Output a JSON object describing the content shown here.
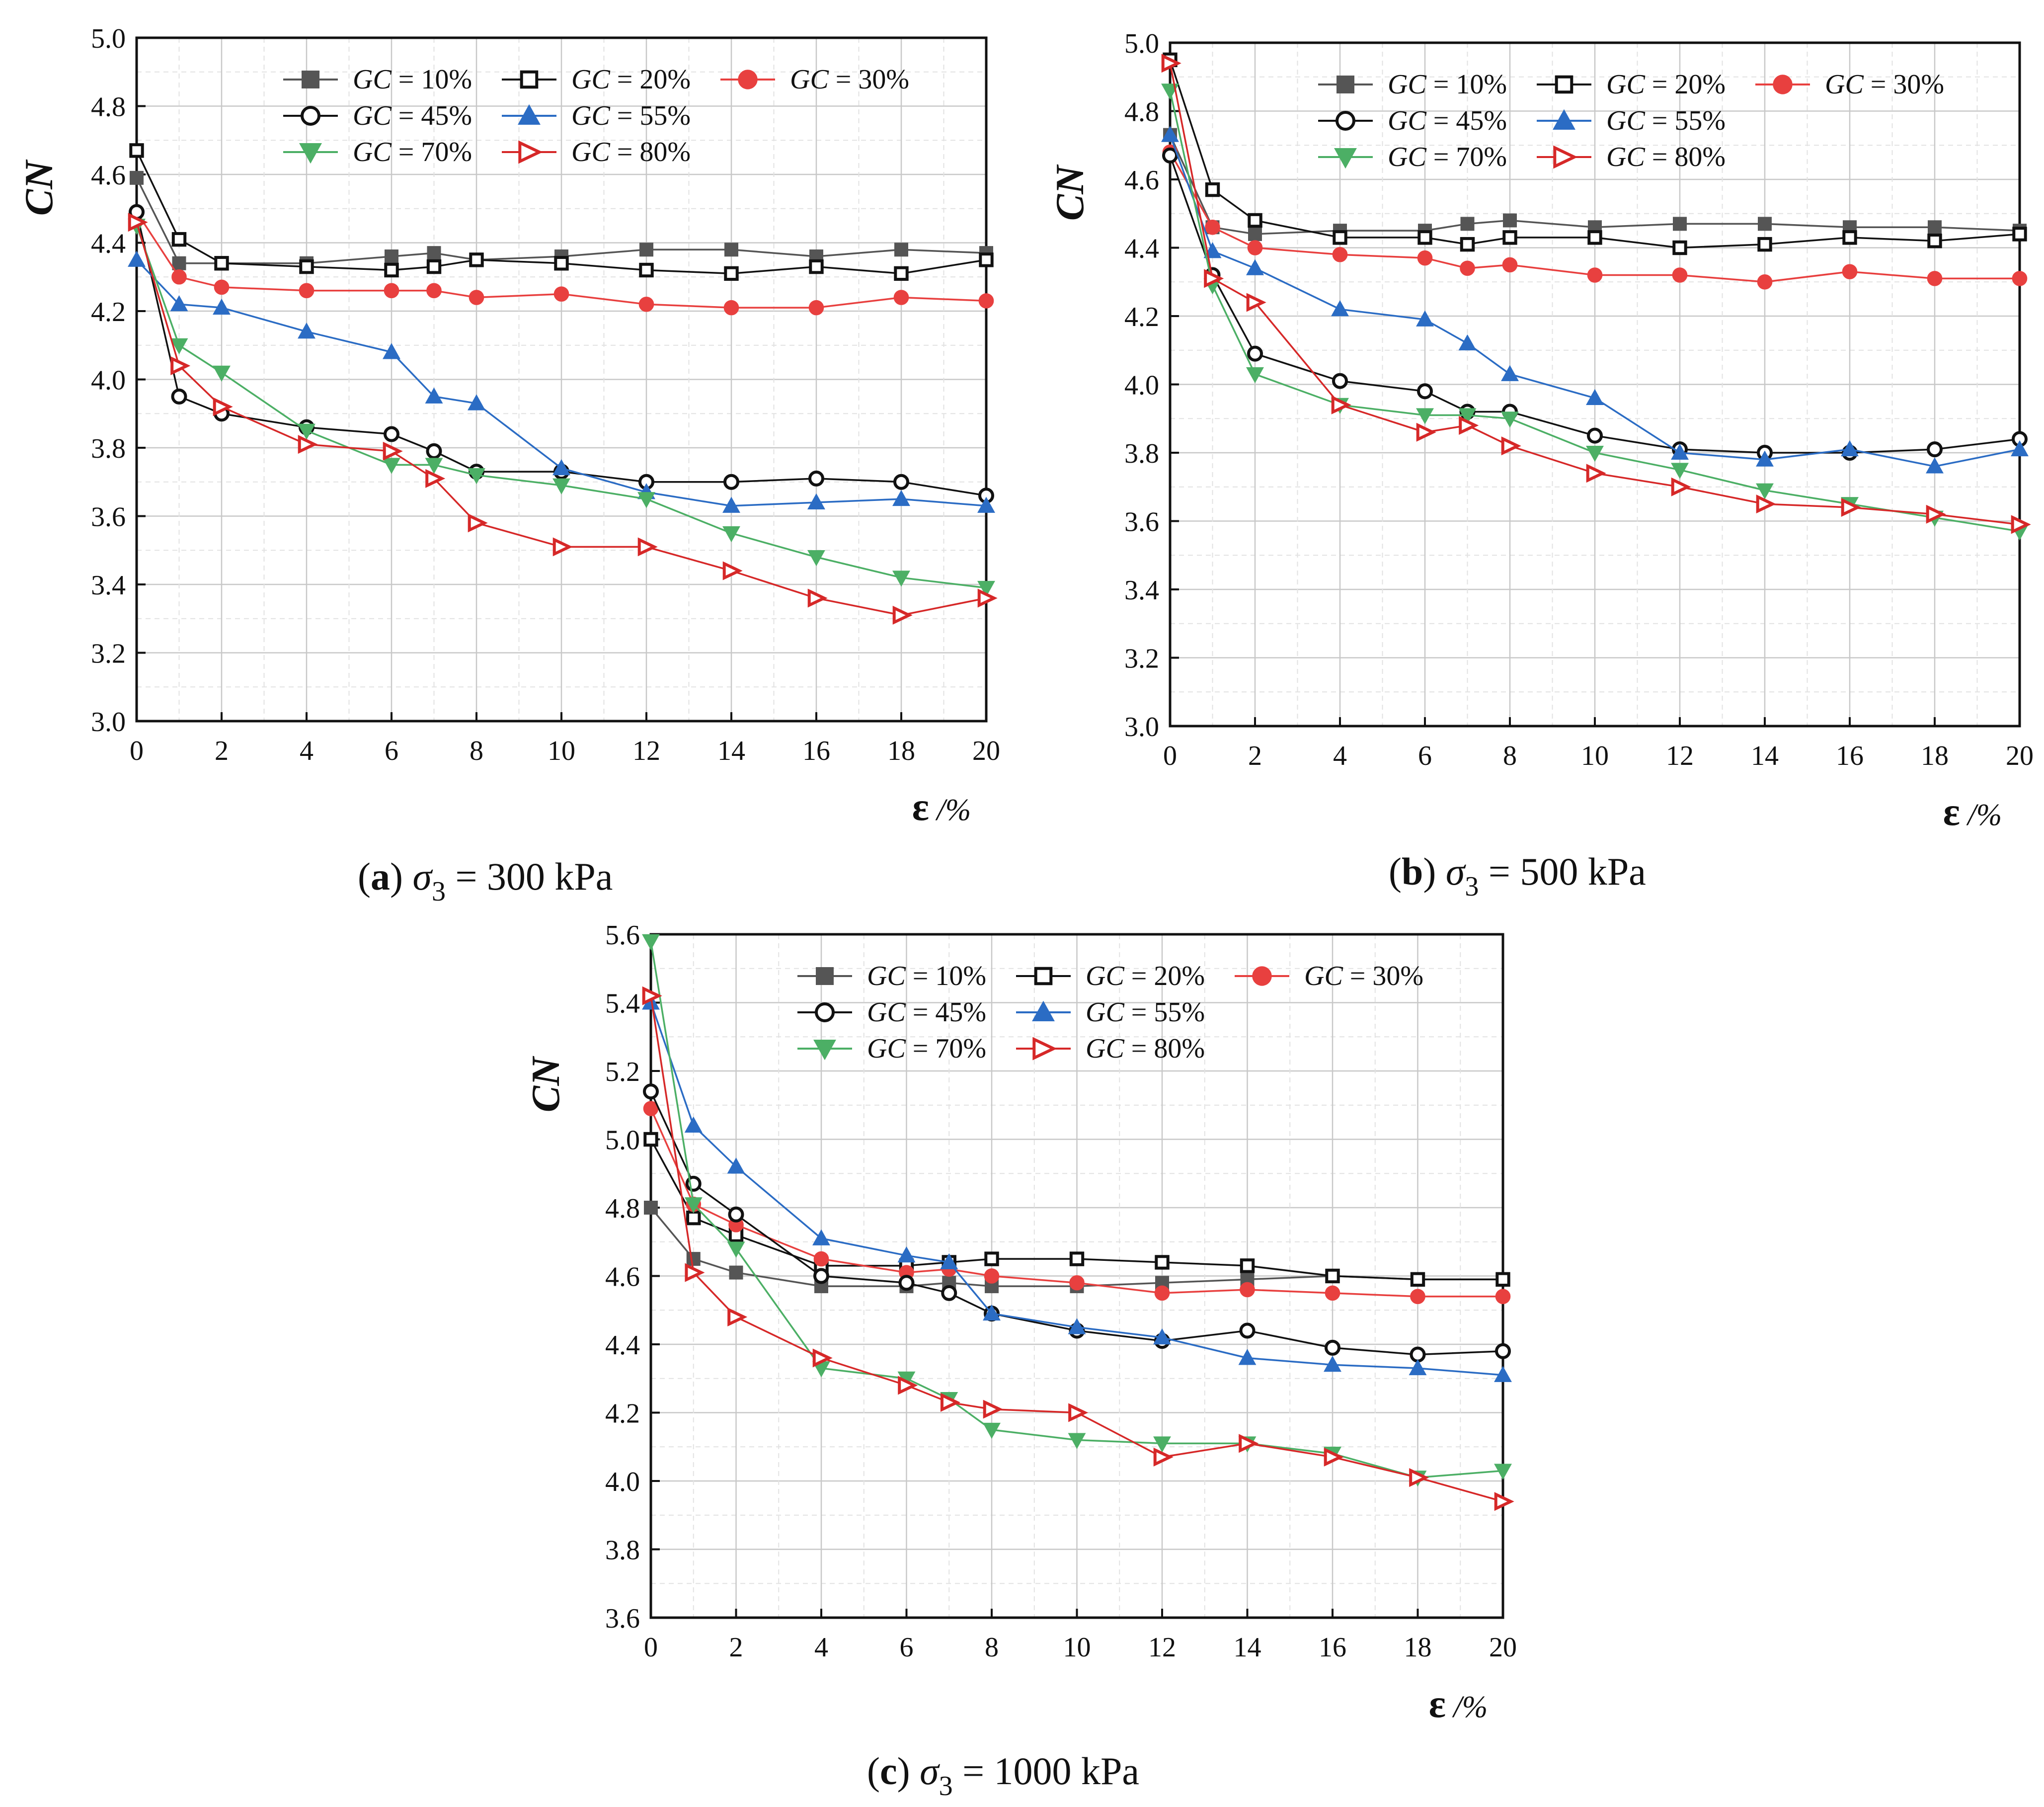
{
  "chart_data": [
    {
      "type": "line",
      "caption": {
        "letter": "a",
        "sigma": "σ",
        "sub": "3",
        "text": " = 300 kPa"
      },
      "ylabel": "CN",
      "xlabel_symbol": "ε",
      "xlabel_unit": " /%",
      "ylim": [
        3.0,
        5.0
      ],
      "yticks": [
        "3.0",
        "3.2",
        "3.4",
        "3.6",
        "3.8",
        "4.0",
        "4.2",
        "4.4",
        "4.6",
        "4.8",
        "5.0"
      ],
      "xlim": [
        0,
        20
      ],
      "xticks": [
        "0",
        "2",
        "4",
        "6",
        "8",
        "10",
        "12",
        "14",
        "16",
        "18",
        "20"
      ],
      "x": [
        0,
        1,
        2,
        4,
        6,
        7,
        8,
        10,
        12,
        14,
        16,
        18,
        20
      ],
      "series": [
        {
          "name": "GC = 10%",
          "gc": "10%",
          "marker": "square-filled",
          "color": "#555555",
          "values": [
            4.59,
            4.34,
            4.34,
            4.34,
            4.36,
            4.37,
            4.35,
            4.36,
            4.38,
            4.38,
            4.36,
            4.38,
            4.37
          ]
        },
        {
          "name": "GC = 20%",
          "gc": "20%",
          "marker": "square-open",
          "color": "#111111",
          "values": [
            4.67,
            4.41,
            4.34,
            4.33,
            4.32,
            4.33,
            4.35,
            4.34,
            4.32,
            4.31,
            4.33,
            4.31,
            4.35
          ]
        },
        {
          "name": "GC = 30%",
          "gc": "30%",
          "marker": "circle-filled",
          "color": "#e8403f",
          "values": [
            4.49,
            4.3,
            4.27,
            4.26,
            4.26,
            4.26,
            4.24,
            4.25,
            4.22,
            4.21,
            4.21,
            4.24,
            4.23
          ]
        },
        {
          "name": "GC = 45%",
          "gc": "45%",
          "marker": "circle-open",
          "color": "#111111",
          "values": [
            4.49,
            3.95,
            3.9,
            3.86,
            3.84,
            3.79,
            3.73,
            3.73,
            3.7,
            3.7,
            3.71,
            3.7,
            3.66
          ]
        },
        {
          "name": "GC = 55%",
          "gc": "55%",
          "marker": "triangle-up",
          "color": "#2b6cc4",
          "values": [
            4.35,
            4.22,
            4.21,
            4.14,
            4.08,
            3.95,
            3.93,
            3.74,
            3.67,
            3.63,
            3.64,
            3.65,
            3.63
          ]
        },
        {
          "name": "GC = 70%",
          "gc": "70%",
          "marker": "triangle-down",
          "color": "#4caf65",
          "values": [
            4.45,
            4.1,
            4.02,
            3.85,
            3.75,
            3.75,
            3.72,
            3.69,
            3.65,
            3.55,
            3.48,
            3.42,
            3.39
          ]
        },
        {
          "name": "GC = 80%",
          "gc": "80%",
          "marker": "triangle-right-open",
          "color": "#d62828",
          "values": [
            4.46,
            4.04,
            3.92,
            3.81,
            3.79,
            3.71,
            3.58,
            3.51,
            3.51,
            3.44,
            3.36,
            3.31,
            3.36
          ]
        }
      ]
    },
    {
      "type": "line",
      "caption": {
        "letter": "b",
        "sigma": "σ",
        "sub": "3",
        "text": " = 500 kPa"
      },
      "ylabel": "CN",
      "xlabel_symbol": "ε",
      "xlabel_unit": " /%",
      "ylim": [
        3.0,
        5.0
      ],
      "yticks": [
        "3.0",
        "3.2",
        "3.4",
        "3.6",
        "3.8",
        "4.0",
        "4.2",
        "4.4",
        "4.6",
        "4.8",
        "5.0"
      ],
      "xlim": [
        0,
        20
      ],
      "xticks": [
        "0",
        "2",
        "4",
        "6",
        "8",
        "10",
        "12",
        "14",
        "16",
        "18",
        "20"
      ],
      "x": [
        0,
        1,
        2,
        4,
        6,
        7,
        8,
        10,
        12,
        14,
        16,
        18,
        20
      ],
      "series": [
        {
          "name": "GC = 10%",
          "gc": "10%",
          "marker": "square-filled",
          "color": "#555555",
          "values": [
            4.73,
            4.46,
            4.44,
            4.45,
            4.45,
            4.47,
            4.48,
            4.46,
            4.47,
            4.47,
            4.46,
            4.46,
            4.45
          ]
        },
        {
          "name": "GC = 20%",
          "gc": "20%",
          "marker": "square-open",
          "color": "#111111",
          "values": [
            4.95,
            4.57,
            4.48,
            4.43,
            4.43,
            4.41,
            4.43,
            4.43,
            4.4,
            4.41,
            4.43,
            4.42,
            4.44
          ]
        },
        {
          "name": "GC = 30%",
          "gc": "30%",
          "marker": "circle-filled",
          "color": "#e8403f",
          "values": [
            4.68,
            4.46,
            4.4,
            4.38,
            4.37,
            4.34,
            4.35,
            4.32,
            4.32,
            4.3,
            4.33,
            4.31,
            4.31
          ]
        },
        {
          "name": "GC = 45%",
          "gc": "45%",
          "marker": "circle-open",
          "color": "#111111",
          "values": [
            4.67,
            4.32,
            4.09,
            4.01,
            3.98,
            3.92,
            3.92,
            3.85,
            3.81,
            3.8,
            3.8,
            3.81,
            3.84
          ]
        },
        {
          "name": "GC = 55%",
          "gc": "55%",
          "marker": "triangle-up",
          "color": "#2b6cc4",
          "values": [
            4.73,
            4.39,
            4.34,
            4.22,
            4.19,
            4.12,
            4.03,
            3.96,
            3.8,
            3.78,
            3.81,
            3.76,
            3.81
          ]
        },
        {
          "name": "GC = 70%",
          "gc": "70%",
          "marker": "triangle-down",
          "color": "#4caf65",
          "values": [
            4.86,
            4.29,
            4.03,
            3.94,
            3.91,
            3.91,
            3.9,
            3.8,
            3.75,
            3.69,
            3.65,
            3.61,
            3.57
          ]
        },
        {
          "name": "GC = 80%",
          "gc": "80%",
          "marker": "triangle-right-open",
          "color": "#d62828",
          "values": [
            4.94,
            4.31,
            4.24,
            3.94,
            3.86,
            3.88,
            3.82,
            3.74,
            3.7,
            3.65,
            3.64,
            3.62,
            3.59
          ]
        }
      ]
    },
    {
      "type": "line",
      "caption": {
        "letter": "c",
        "sigma": "σ",
        "sub": "3",
        "text": " = 1000 kPa"
      },
      "ylabel": "CN",
      "xlabel_symbol": "ε",
      "xlabel_unit": " /%",
      "ylim": [
        3.6,
        5.6
      ],
      "yticks": [
        "3.6",
        "3.8",
        "4.0",
        "4.2",
        "4.4",
        "4.6",
        "4.8",
        "5.0",
        "5.2",
        "5.4",
        "5.6"
      ],
      "xlim": [
        0,
        20
      ],
      "xticks": [
        "0",
        "2",
        "4",
        "6",
        "8",
        "10",
        "12",
        "14",
        "16",
        "18",
        "20"
      ],
      "x": [
        0,
        1,
        2,
        4,
        6,
        7,
        8,
        10,
        12,
        14,
        16,
        18,
        20
      ],
      "series": [
        {
          "name": "GC = 10%",
          "gc": "10%",
          "marker": "square-filled",
          "color": "#555555",
          "values": [
            4.8,
            4.65,
            4.61,
            4.57,
            4.57,
            4.58,
            4.57,
            4.57,
            4.58,
            4.59,
            4.6,
            4.59,
            4.59
          ]
        },
        {
          "name": "GC = 20%",
          "gc": "20%",
          "marker": "square-open",
          "color": "#111111",
          "values": [
            5.0,
            4.77,
            4.72,
            4.63,
            4.63,
            4.64,
            4.65,
            4.65,
            4.64,
            4.63,
            4.6,
            4.59,
            4.59
          ]
        },
        {
          "name": "GC = 30%",
          "gc": "30%",
          "marker": "circle-filled",
          "color": "#e8403f",
          "values": [
            5.09,
            4.81,
            4.75,
            4.65,
            4.61,
            4.62,
            4.6,
            4.58,
            4.55,
            4.56,
            4.55,
            4.54,
            4.54
          ]
        },
        {
          "name": "GC = 45%",
          "gc": "45%",
          "marker": "circle-open",
          "color": "#111111",
          "values": [
            5.14,
            4.87,
            4.78,
            4.6,
            4.58,
            4.55,
            4.49,
            4.44,
            4.41,
            4.44,
            4.39,
            4.37,
            4.38
          ]
        },
        {
          "name": "GC = 55%",
          "gc": "55%",
          "marker": "triangle-up",
          "color": "#2b6cc4",
          "values": [
            5.4,
            5.04,
            4.92,
            4.71,
            4.66,
            4.64,
            4.49,
            4.45,
            4.42,
            4.36,
            4.34,
            4.33,
            4.31
          ]
        },
        {
          "name": "GC = 70%",
          "gc": "70%",
          "marker": "triangle-down",
          "color": "#4caf65",
          "values": [
            5.58,
            4.81,
            4.68,
            4.33,
            4.3,
            4.24,
            4.15,
            4.12,
            4.11,
            4.11,
            4.08,
            4.01,
            4.03
          ]
        },
        {
          "name": "GC = 80%",
          "gc": "80%",
          "marker": "triangle-right-open",
          "color": "#d62828",
          "values": [
            5.42,
            4.61,
            4.48,
            4.36,
            4.28,
            4.23,
            4.21,
            4.2,
            4.07,
            4.11,
            4.07,
            4.01,
            3.94
          ]
        }
      ]
    }
  ]
}
